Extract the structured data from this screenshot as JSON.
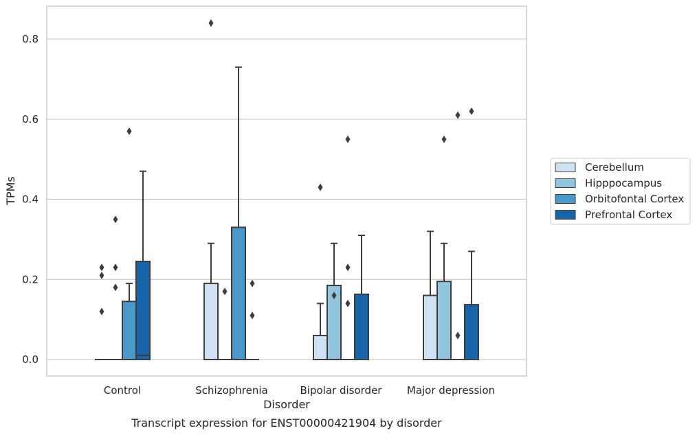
{
  "chart_data": {
    "type": "box",
    "title": "",
    "caption": "Transcript expression for ENST00000421904 by disorder",
    "xlabel": "Disorder",
    "ylabel": "TPMs",
    "ylim": [
      -0.04,
      0.885
    ],
    "yticks": [
      0.0,
      0.2,
      0.4,
      0.6,
      0.8
    ],
    "yticklabels": [
      "0.0",
      "0.2",
      "0.4",
      "0.6",
      "0.8"
    ],
    "grid": "horizontal",
    "legend_position": "right",
    "categories": [
      "Control",
      "Schizophrenia",
      "Bipolar disorder",
      "Major depression"
    ],
    "series": [
      {
        "name": "Cerebellum",
        "color": "#cfe1f2",
        "boxes": [
          {
            "q1": 0.0,
            "median": 0.0,
            "q3": 0.0,
            "whisker_low": 0.0,
            "whisker_high": 0.0,
            "outliers": [
              0.23,
              0.21,
              0.12
            ]
          },
          {
            "q1": 0.0,
            "median": 0.0,
            "q3": 0.19,
            "whisker_low": 0.0,
            "whisker_high": 0.29,
            "outliers": [
              0.84
            ]
          },
          {
            "q1": 0.0,
            "median": 0.0,
            "q3": 0.06,
            "whisker_low": 0.0,
            "whisker_high": 0.14,
            "outliers": [
              0.43
            ]
          },
          {
            "q1": 0.0,
            "median": 0.0,
            "q3": 0.16,
            "whisker_low": 0.0,
            "whisker_high": 0.32,
            "outliers": []
          }
        ]
      },
      {
        "name": "Hipppocampus",
        "color": "#93c4de",
        "boxes": [
          {
            "q1": 0.0,
            "median": 0.0,
            "q3": 0.0,
            "whisker_low": 0.0,
            "whisker_high": 0.0,
            "outliers": [
              0.35,
              0.23,
              0.18
            ]
          },
          {
            "q1": 0.0,
            "median": 0.0,
            "q3": 0.0,
            "whisker_low": 0.0,
            "whisker_high": 0.0,
            "outliers": [
              0.17
            ]
          },
          {
            "q1": 0.0,
            "median": 0.0,
            "q3": 0.185,
            "whisker_low": 0.0,
            "whisker_high": 0.29,
            "outliers": [
              0.16
            ]
          },
          {
            "q1": 0.0,
            "median": 0.0,
            "q3": 0.195,
            "whisker_low": 0.0,
            "whisker_high": 0.29,
            "outliers": [
              0.55
            ]
          }
        ]
      },
      {
        "name": "Orbitofontal Cortex",
        "color": "#4a98c9",
        "boxes": [
          {
            "q1": 0.0,
            "median": 0.0,
            "q3": 0.145,
            "whisker_low": 0.0,
            "whisker_high": 0.19,
            "outliers": [
              0.57
            ]
          },
          {
            "q1": 0.0,
            "median": 0.0,
            "q3": 0.33,
            "whisker_low": 0.0,
            "whisker_high": 0.73,
            "outliers": []
          },
          {
            "q1": 0.0,
            "median": 0.0,
            "q3": 0.0,
            "whisker_low": 0.0,
            "whisker_high": 0.0,
            "outliers": [
              0.55,
              0.23,
              0.14
            ]
          },
          {
            "q1": 0.0,
            "median": 0.0,
            "q3": 0.0,
            "whisker_low": 0.0,
            "whisker_high": 0.0,
            "outliers": [
              0.61,
              0.06
            ]
          }
        ]
      },
      {
        "name": "Prefrontal Cortex",
        "color": "#1764ab",
        "boxes": [
          {
            "q1": 0.0,
            "median": 0.01,
            "q3": 0.245,
            "whisker_low": 0.0,
            "whisker_high": 0.47,
            "outliers": []
          },
          {
            "q1": 0.0,
            "median": 0.0,
            "q3": 0.0,
            "whisker_low": 0.0,
            "whisker_high": 0.0,
            "outliers": [
              0.19,
              0.11
            ]
          },
          {
            "q1": 0.0,
            "median": 0.0,
            "q3": 0.163,
            "whisker_low": 0.0,
            "whisker_high": 0.31,
            "outliers": []
          },
          {
            "q1": 0.0,
            "median": 0.0,
            "q3": 0.137,
            "whisker_low": 0.0,
            "whisker_high": 0.27,
            "outliers": [
              0.62
            ]
          }
        ]
      }
    ]
  }
}
